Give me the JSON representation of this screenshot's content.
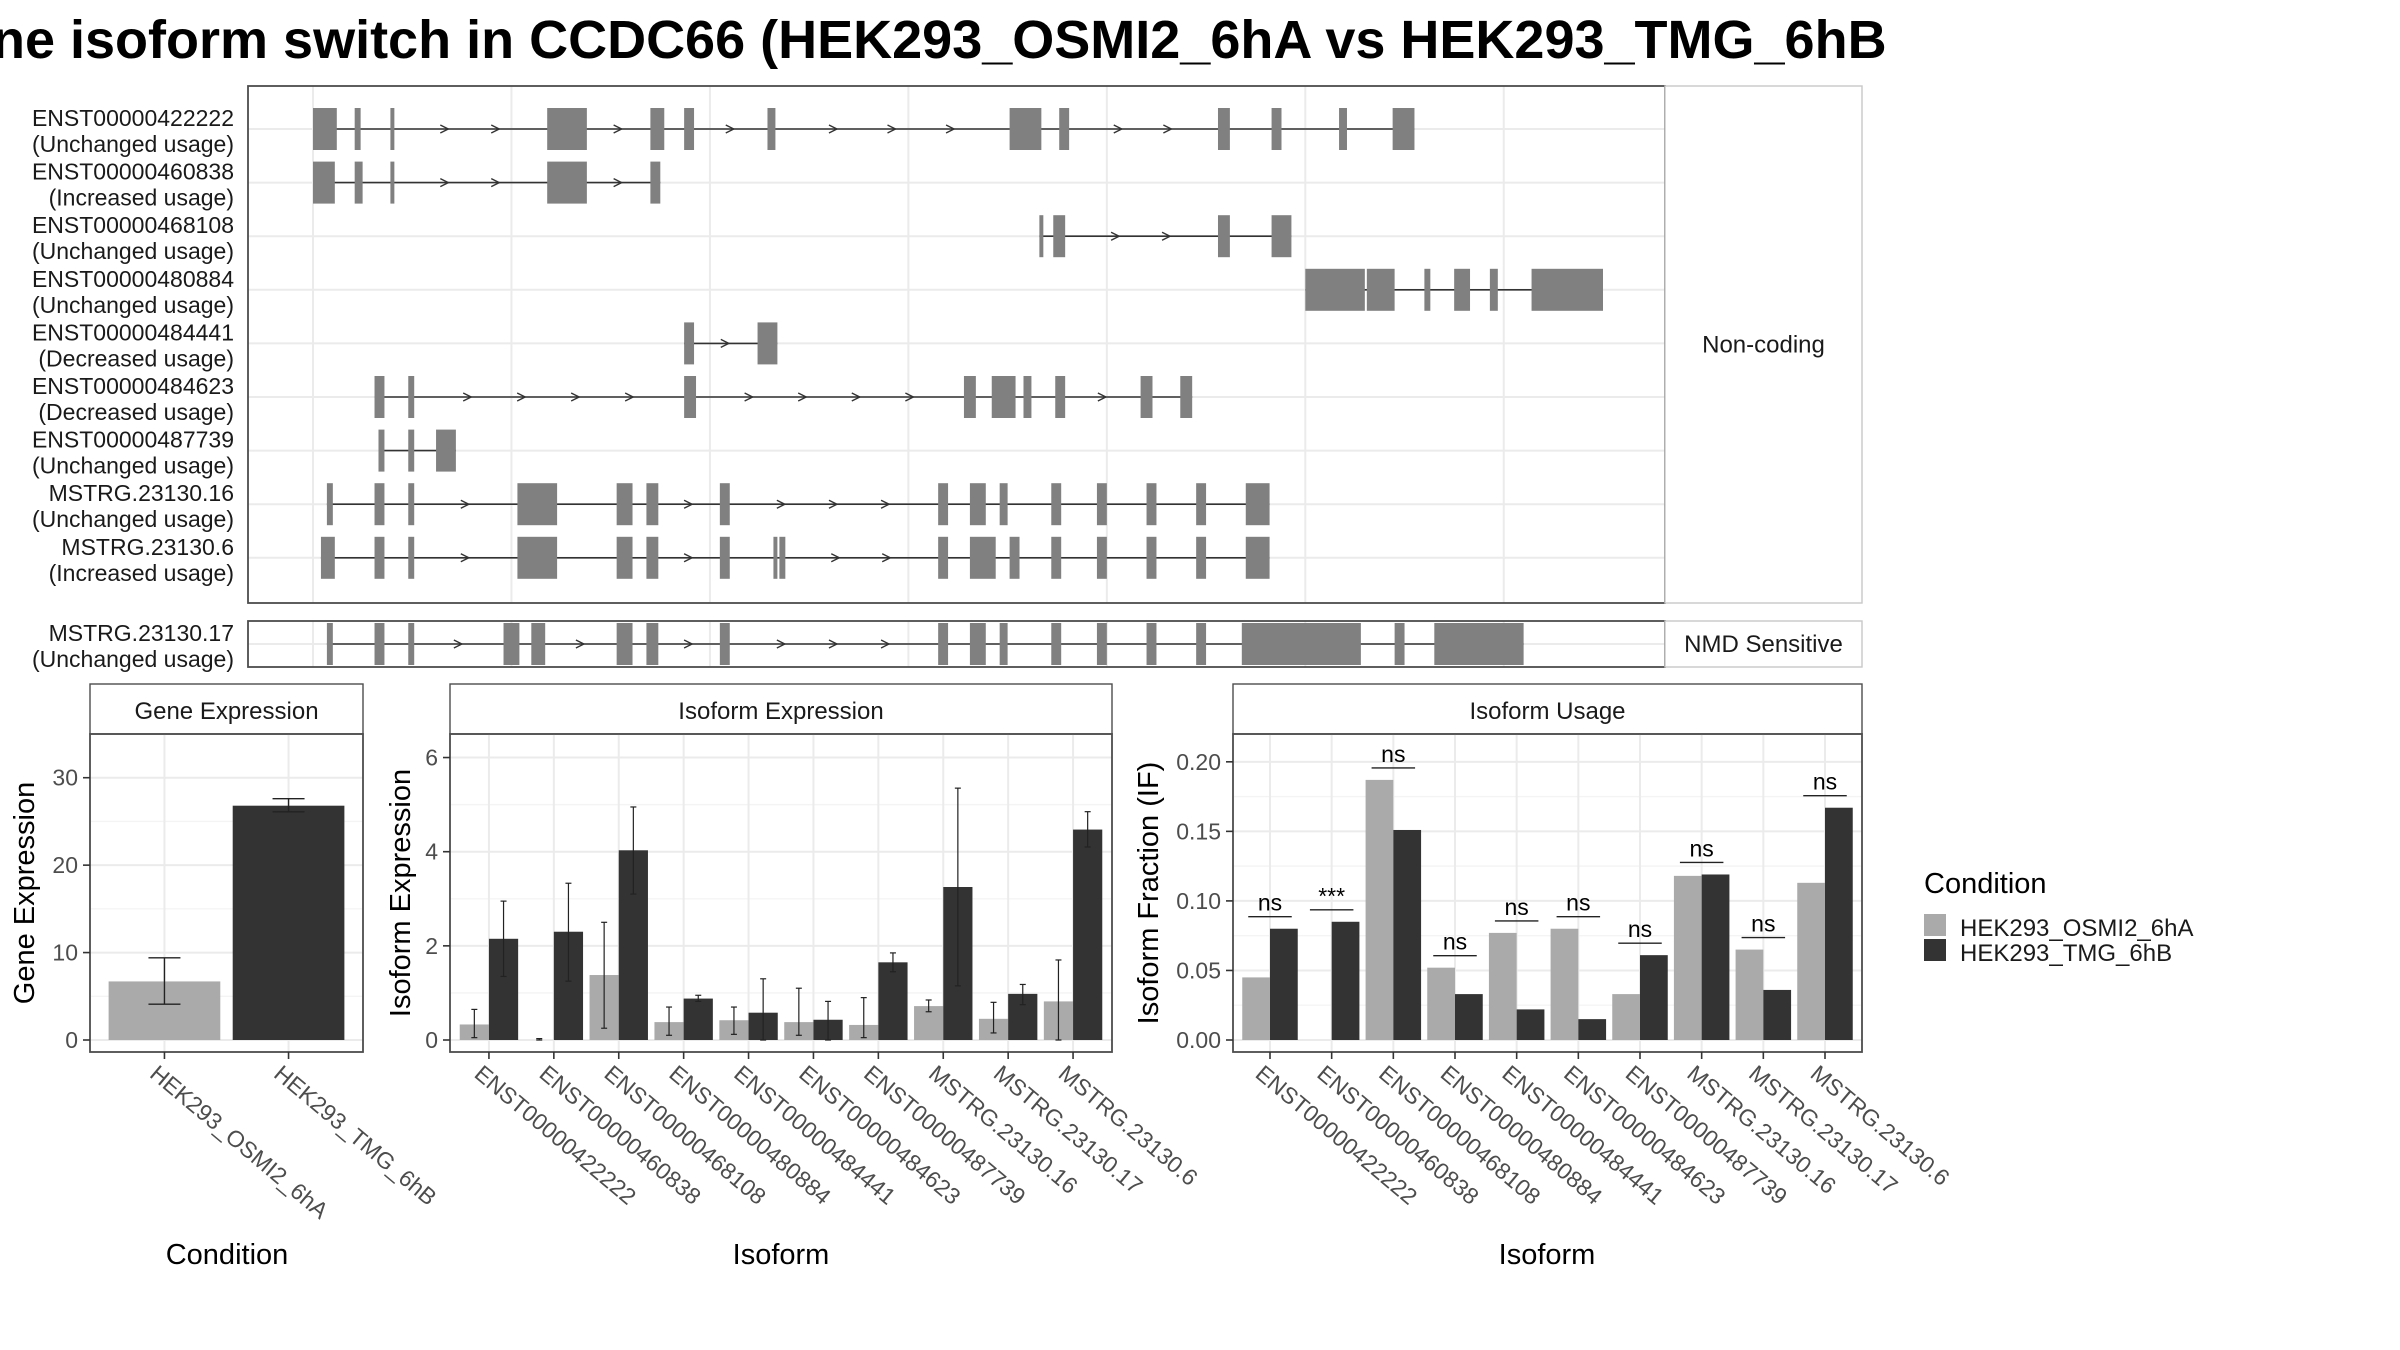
{
  "title": "ne isoform switch in CCDC66 (HEK293_OSMI2_6hA vs HEK293_TMG_6hB",
  "colors": {
    "cond1": "#aaaaaa",
    "cond2": "#333333",
    "exon": "#808080",
    "panel_border": "#4d4d4d",
    "strip_fill": "#ffffff",
    "grid": "#ebebeb"
  },
  "structure": {
    "groups": [
      {
        "label": "Non-coding",
        "isoforms": [
          {
            "id": "ENST00000422222",
            "usage": "(Unchanged usage)",
            "exons": [
              [
                0,
                12
              ],
              [
                21,
                24
              ],
              [
                39,
                41
              ],
              [
                118,
                138
              ],
              [
                170,
                177
              ],
              [
                187,
                192
              ],
              [
                229,
                233
              ],
              [
                351,
                367
              ],
              [
                376,
                381
              ],
              [
                456,
                462
              ],
              [
                483,
                488
              ],
              [
                517,
                521
              ],
              [
                544,
                555
              ]
            ]
          },
          {
            "id": "ENST00000460838",
            "usage": "(Increased usage)",
            "exons": [
              [
                0,
                11
              ],
              [
                21,
                25
              ],
              [
                39,
                41
              ],
              [
                118,
                138
              ],
              [
                170,
                175
              ]
            ]
          },
          {
            "id": "ENST00000468108",
            "usage": "(Unchanged usage)",
            "exons": [
              [
                366,
                368
              ],
              [
                373,
                379
              ],
              [
                456,
                462
              ],
              [
                483,
                493
              ]
            ]
          },
          {
            "id": "ENST00000480884",
            "usage": "(Unchanged usage)",
            "exons": [
              [
                500,
                530
              ],
              [
                531,
                545
              ],
              [
                560,
                563
              ],
              [
                575,
                583
              ],
              [
                593,
                597
              ],
              [
                614,
                650
              ]
            ]
          },
          {
            "id": "ENST00000484441",
            "usage": "(Decreased usage)",
            "exons": [
              [
                187,
                192
              ],
              [
                224,
                234
              ]
            ]
          },
          {
            "id": "ENST00000484623",
            "usage": "(Decreased usage)",
            "exons": [
              [
                31,
                36
              ],
              [
                48,
                51
              ],
              [
                187,
                193
              ],
              [
                328,
                334
              ],
              [
                342,
                354
              ],
              [
                358,
                362
              ],
              [
                374,
                379
              ],
              [
                417,
                423
              ],
              [
                437,
                443
              ]
            ]
          },
          {
            "id": "ENST00000487739",
            "usage": "(Unchanged usage)",
            "exons": [
              [
                33,
                36
              ],
              [
                48,
                51
              ],
              [
                62,
                72
              ]
            ]
          },
          {
            "id": "MSTRG.23130.16",
            "usage": "(Unchanged usage)",
            "exons": [
              [
                7,
                10
              ],
              [
                31,
                36
              ],
              [
                48,
                51
              ],
              [
                103,
                123
              ],
              [
                153,
                161
              ],
              [
                168,
                174
              ],
              [
                205,
                210
              ],
              [
                315,
                320
              ],
              [
                331,
                339
              ],
              [
                346,
                350
              ],
              [
                372,
                377
              ],
              [
                395,
                400
              ],
              [
                420,
                425
              ],
              [
                445,
                450
              ],
              [
                470,
                482
              ]
            ]
          },
          {
            "id": "MSTRG.23130.6",
            "usage": "(Increased usage)",
            "exons": [
              [
                4,
                11
              ],
              [
                31,
                36
              ],
              [
                48,
                51
              ],
              [
                103,
                123
              ],
              [
                153,
                161
              ],
              [
                168,
                174
              ],
              [
                205,
                210
              ],
              [
                232,
                234
              ],
              [
                235,
                238
              ],
              [
                315,
                320
              ],
              [
                331,
                344
              ],
              [
                351,
                356
              ],
              [
                372,
                377
              ],
              [
                395,
                400
              ],
              [
                420,
                425
              ],
              [
                445,
                450
              ],
              [
                470,
                482
              ]
            ]
          }
        ]
      },
      {
        "label": "NMD Sensitive",
        "isoforms": [
          {
            "id": "MSTRG.23130.17",
            "usage": "(Unchanged usage)",
            "exons": [
              [
                7,
                10
              ],
              [
                31,
                36
              ],
              [
                48,
                51
              ],
              [
                96,
                104
              ],
              [
                110,
                117
              ],
              [
                153,
                161
              ],
              [
                168,
                174
              ],
              [
                205,
                210
              ],
              [
                315,
                320
              ],
              [
                331,
                339
              ],
              [
                346,
                350
              ],
              [
                372,
                377
              ],
              [
                395,
                400
              ],
              [
                420,
                425
              ],
              [
                445,
                450
              ],
              [
                468,
                488
              ],
              [
                488,
                528
              ],
              [
                545,
                550
              ],
              [
                565,
                610
              ]
            ]
          }
        ]
      }
    ]
  },
  "chart_data": [
    {
      "type": "bar",
      "panel": "Gene Expression",
      "xlabel": "Condition",
      "ylabel": "Gene Expression",
      "ylim": [
        0,
        35
      ],
      "yticks": [
        0,
        10,
        20,
        30
      ],
      "categories": [
        "HEK293_OSMI2_6hA",
        "HEK293_TMG_6hB"
      ],
      "values": [
        6.7,
        26.8
      ],
      "errors": [
        [
          4.1,
          9.4
        ],
        [
          26.1,
          27.6
        ]
      ]
    },
    {
      "type": "bar",
      "panel": "Isoform Expression",
      "xlabel": "Isoform",
      "ylabel": "Isoform Expression",
      "ylim": [
        0,
        6.5
      ],
      "yticks": [
        0,
        2,
        4,
        6
      ],
      "categories": [
        "ENST00000422222",
        "ENST00000460838",
        "ENST00000468108",
        "ENST00000480884",
        "ENST00000484441",
        "ENST00000484623",
        "ENST00000487739",
        "MSTRG.23130.16",
        "MSTRG.23130.17",
        "MSTRG.23130.6"
      ],
      "series": [
        {
          "name": "HEK293_OSMI2_6hA",
          "values": [
            0.33,
            0.0,
            1.38,
            0.38,
            0.42,
            0.38,
            0.32,
            0.72,
            0.45,
            0.82
          ],
          "err_low": [
            0.05,
            0.0,
            0.25,
            0.1,
            0.12,
            0.1,
            0.05,
            0.6,
            0.15,
            0.0
          ],
          "err_high": [
            0.65,
            0.03,
            2.5,
            0.7,
            0.7,
            1.1,
            0.9,
            0.85,
            0.8,
            1.7
          ]
        },
        {
          "name": "HEK293_TMG_6hB",
          "values": [
            2.15,
            2.3,
            4.03,
            0.88,
            0.58,
            0.43,
            1.65,
            3.25,
            0.98,
            4.47
          ],
          "err_low": [
            1.35,
            1.25,
            3.1,
            0.82,
            0.0,
            0.0,
            1.45,
            1.15,
            0.75,
            4.1
          ],
          "err_high": [
            2.95,
            3.33,
            4.95,
            0.95,
            1.3,
            0.82,
            1.85,
            5.35,
            1.18,
            4.85
          ]
        }
      ]
    },
    {
      "type": "bar",
      "panel": "Isoform Usage",
      "xlabel": "Isoform",
      "ylabel": "Isoform Fraction (IF)",
      "ylim": [
        0,
        0.22
      ],
      "yticks": [
        "0.00",
        "0.05",
        "0.10",
        "0.15",
        "0.20"
      ],
      "categories": [
        "ENST00000422222",
        "ENST00000460838",
        "ENST00000468108",
        "ENST00000480884",
        "ENST00000484441",
        "ENST00000484623",
        "ENST00000487739",
        "MSTRG.23130.16",
        "MSTRG.23130.17",
        "MSTRG.23130.6"
      ],
      "series": [
        {
          "name": "HEK293_OSMI2_6hA",
          "values": [
            0.045,
            0.0,
            0.187,
            0.052,
            0.077,
            0.08,
            0.033,
            0.118,
            0.065,
            0.113
          ]
        },
        {
          "name": "HEK293_TMG_6hB",
          "values": [
            0.08,
            0.085,
            0.151,
            0.033,
            0.022,
            0.015,
            0.061,
            0.119,
            0.036,
            0.167
          ]
        }
      ],
      "significance": [
        "ns",
        "***",
        "ns",
        "ns",
        "ns",
        "ns",
        "ns",
        "ns",
        "ns",
        "ns"
      ]
    }
  ],
  "legend": {
    "title": "Condition",
    "entries": [
      "HEK293_OSMI2_6hA",
      "HEK293_TMG_6hB"
    ]
  }
}
